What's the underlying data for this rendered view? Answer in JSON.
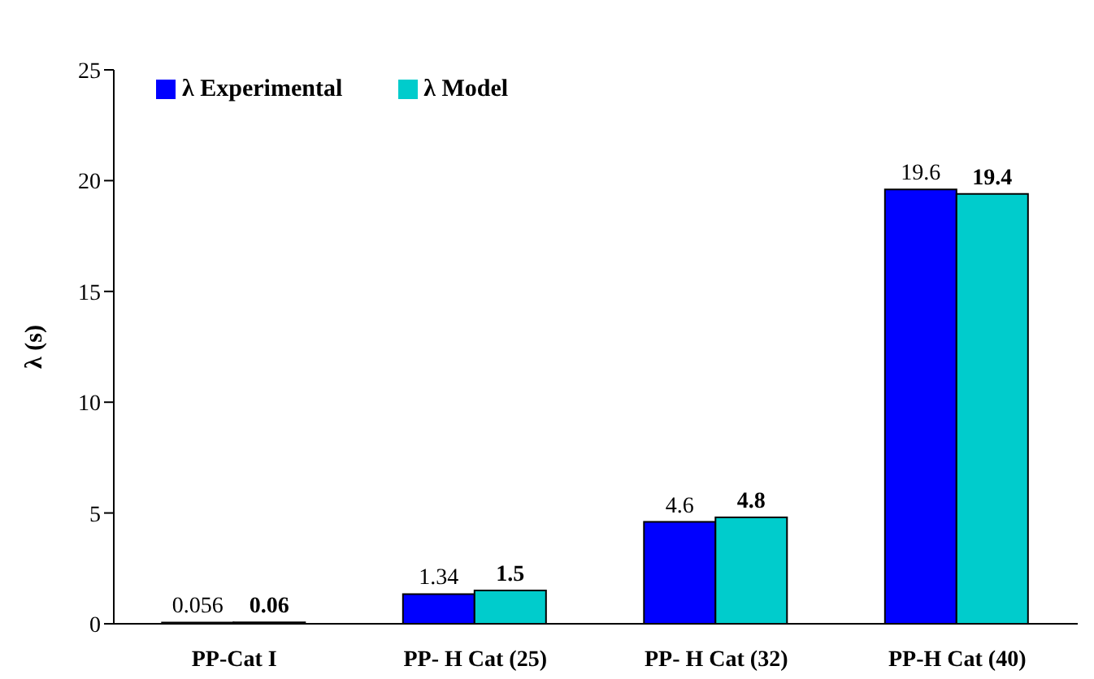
{
  "chart_data": {
    "type": "bar",
    "ylabel": "λ (s)",
    "categories": [
      "PP-Cat I",
      "PP- H Cat (25)",
      "PP- H Cat (32)",
      "PP-H Cat (40)"
    ],
    "series": [
      {
        "name": "λ Experimental",
        "color": "#0000ff",
        "values": [
          0.056,
          1.34,
          4.6,
          19.6
        ]
      },
      {
        "name": "λ Model",
        "color": "#00cccc",
        "values": [
          0.06,
          1.5,
          4.8,
          19.4
        ]
      }
    ],
    "ylim": [
      0,
      25
    ],
    "yticks": [
      0,
      5,
      10,
      15,
      20,
      25
    ],
    "grid": false,
    "legend": "top left",
    "data_labels": true
  }
}
